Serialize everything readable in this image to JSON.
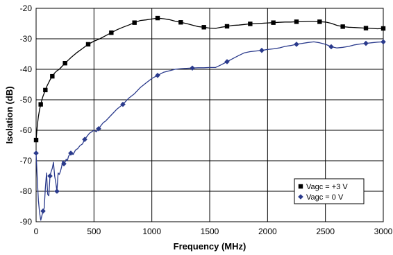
{
  "chart_data": {
    "type": "line",
    "title": "",
    "xlabel": "Frequency (MHz)",
    "ylabel": "Isolation (dB)",
    "xlim": [
      0,
      3000
    ],
    "ylim": [
      -90,
      -20
    ],
    "xticks": [
      0,
      500,
      1000,
      1500,
      2000,
      2500,
      3000
    ],
    "yticks": [
      -20,
      -30,
      -40,
      -50,
      -60,
      -70,
      -80,
      -90
    ],
    "grid": true,
    "legend_position": "bottom-right",
    "series": [
      {
        "name": "Vagc = +3 V",
        "color": "#000000",
        "marker": "square",
        "x": [
          0,
          10,
          20,
          30,
          40,
          50,
          60,
          70,
          80,
          90,
          100,
          120,
          140,
          160,
          180,
          200,
          250,
          300,
          350,
          400,
          450,
          500,
          550,
          600,
          650,
          700,
          750,
          800,
          850,
          900,
          950,
          1000,
          1050,
          1100,
          1150,
          1200,
          1250,
          1300,
          1350,
          1400,
          1450,
          1500,
          1550,
          1600,
          1650,
          1700,
          1750,
          1800,
          1850,
          1900,
          1950,
          2000,
          2050,
          2100,
          2150,
          2200,
          2250,
          2300,
          2350,
          2400,
          2450,
          2500,
          2550,
          2600,
          2650,
          2700,
          2750,
          2800,
          2850,
          2900,
          2950,
          3000
        ],
        "y": [
          -63.2,
          -58.5,
          -55.5,
          -53.2,
          -51.5,
          -50.0,
          -48.8,
          -47.8,
          -46.8,
          -45.8,
          -45.0,
          -43.5,
          -42.3,
          -41.2,
          -40.5,
          -40.0,
          -38.0,
          -36.2,
          -34.6,
          -33.2,
          -31.8,
          -30.8,
          -30.0,
          -29.0,
          -28.0,
          -27.0,
          -26.2,
          -25.5,
          -24.7,
          -24.0,
          -23.8,
          -23.5,
          -23.2,
          -23.4,
          -23.7,
          -24.2,
          -24.6,
          -25.0,
          -25.5,
          -26.0,
          -26.2,
          -26.5,
          -26.6,
          -26.2,
          -25.9,
          -25.6,
          -25.5,
          -25.3,
          -25.1,
          -25.0,
          -24.9,
          -24.8,
          -24.7,
          -24.6,
          -24.5,
          -24.5,
          -24.4,
          -24.4,
          -24.3,
          -24.3,
          -24.4,
          -24.5,
          -24.9,
          -25.6,
          -26.0,
          -26.2,
          -26.3,
          -26.4,
          -26.5,
          -26.6,
          -26.7,
          -26.6
        ]
      },
      {
        "name": "Vagc = 0 V",
        "color": "#2a3a8c",
        "marker": "diamond",
        "x": [
          0,
          10,
          20,
          30,
          40,
          50,
          60,
          70,
          80,
          90,
          100,
          110,
          120,
          130,
          140,
          150,
          160,
          170,
          180,
          190,
          200,
          210,
          220,
          230,
          240,
          250,
          260,
          270,
          280,
          290,
          300,
          320,
          340,
          360,
          380,
          400,
          420,
          440,
          460,
          480,
          500,
          520,
          540,
          560,
          580,
          600,
          650,
          700,
          750,
          800,
          850,
          900,
          950,
          1000,
          1050,
          1100,
          1150,
          1200,
          1250,
          1300,
          1350,
          1400,
          1450,
          1500,
          1550,
          1600,
          1650,
          1700,
          1750,
          1800,
          1850,
          1900,
          1950,
          2000,
          2050,
          2100,
          2150,
          2200,
          2250,
          2300,
          2350,
          2400,
          2450,
          2500,
          2550,
          2600,
          2650,
          2700,
          2750,
          2800,
          2850,
          2900,
          2950,
          3000
        ],
        "y": [
          -67.5,
          -76.0,
          -83.0,
          -87.0,
          -89.5,
          -88.0,
          -86.5,
          -85.5,
          -79.0,
          -74.0,
          -81.0,
          -81.5,
          -75.0,
          -73.5,
          -72.5,
          -70.5,
          -75.0,
          -77.0,
          -80.0,
          -74.0,
          -74.5,
          -73.5,
          -72.0,
          -70.0,
          -71.0,
          -70.5,
          -69.5,
          -70.0,
          -68.5,
          -68.0,
          -67.5,
          -68.0,
          -66.5,
          -66.0,
          -65.0,
          -64.5,
          -63.0,
          -62.0,
          -61.0,
          -60.5,
          -60.0,
          -60.5,
          -59.5,
          -58.5,
          -57.5,
          -57.0,
          -55.0,
          -53.0,
          -51.5,
          -49.5,
          -48.0,
          -46.0,
          -44.5,
          -43.0,
          -42.0,
          -41.0,
          -40.5,
          -40.0,
          -39.8,
          -39.7,
          -39.6,
          -39.5,
          -39.5,
          -39.4,
          -39.4,
          -38.5,
          -37.5,
          -36.5,
          -35.5,
          -34.6,
          -34.2,
          -34.0,
          -33.8,
          -33.5,
          -33.3,
          -33.0,
          -32.5,
          -32.2,
          -31.8,
          -31.5,
          -31.2,
          -31.0,
          -31.3,
          -31.8,
          -32.6,
          -33.0,
          -32.8,
          -32.5,
          -32.0,
          -31.7,
          -31.5,
          -31.3,
          -31.1,
          -31.0
        ]
      }
    ]
  }
}
